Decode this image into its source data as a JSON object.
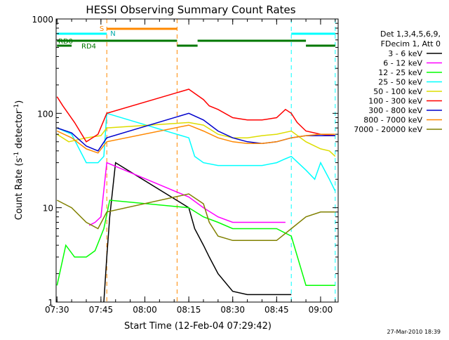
{
  "chart_data": {
    "type": "line",
    "title": "HESSI Observing Summary Count Rates",
    "xlabel": "Start Time (12-Feb-04 07:29:42)",
    "ylabel": "Count Rate (s",
    "ylabel_sup1": "-1",
    "ylabel_mid": " detector",
    "ylabel_sup2": "-1",
    "ylabel_end": ")",
    "y_scale": "log",
    "ylim": [
      1,
      1000
    ],
    "xlim": [
      "07:29:42",
      "09:06:00"
    ],
    "x_ticks": [
      "07:30",
      "07:45",
      "08:00",
      "08:15",
      "08:30",
      "08:45",
      "09:00"
    ],
    "y_ticks": [
      "1",
      "10",
      "100",
      "1000"
    ],
    "legend": {
      "header": [
        "Det 1,3,4,5,6,9,",
        "FDecim 1, Att 0"
      ],
      "placement": "right"
    },
    "series": [
      {
        "name": "3 - 6 keV",
        "color": "#000000",
        "x": [
          "07:46",
          "07:47",
          "07:48",
          "07:50",
          "08:15",
          "08:17",
          "08:20",
          "08:22",
          "08:25",
          "08:30",
          "08:35",
          "08:40",
          "08:45",
          "08:50"
        ],
        "y": [
          1,
          3,
          8,
          30,
          10,
          6,
          4,
          3,
          2,
          1.3,
          1.2,
          1.2,
          1.2,
          1.2
        ]
      },
      {
        "name": "6 - 12 keV",
        "color": "#ff00ff",
        "x": [
          "07:41",
          "07:43",
          "07:45",
          "07:47",
          "08:15",
          "08:20",
          "08:25",
          "08:30",
          "08:35",
          "08:40",
          "08:45",
          "08:48"
        ],
        "y": [
          6.5,
          7,
          8,
          30,
          13,
          10,
          8,
          7,
          7,
          7,
          7,
          7
        ]
      },
      {
        "name": "12 - 25 keV",
        "color": "#00ff00",
        "x": [
          "07:30",
          "07:33",
          "07:36",
          "07:40",
          "07:43",
          "07:46",
          "07:48",
          "08:15",
          "08:20",
          "08:25",
          "08:30",
          "08:35",
          "08:40",
          "08:45",
          "08:50",
          "08:55",
          "09:00",
          "09:05"
        ],
        "y": [
          1.5,
          4,
          3,
          3,
          3.5,
          6,
          12,
          10,
          8,
          7,
          6,
          6,
          6,
          6,
          5,
          1.5,
          1.5,
          1.5
        ]
      },
      {
        "name": "25 - 50 keV",
        "color": "#00ffff",
        "x": [
          "07:30",
          "07:35",
          "07:40",
          "07:44",
          "07:46",
          "07:47",
          "08:15",
          "08:17",
          "08:20",
          "08:25",
          "08:30",
          "08:35",
          "08:40",
          "08:45",
          "08:48",
          "08:50",
          "08:55",
          "08:58",
          "09:00",
          "09:03",
          "09:05"
        ],
        "y": [
          70,
          60,
          30,
          30,
          35,
          100,
          55,
          35,
          30,
          28,
          28,
          28,
          28,
          30,
          33,
          35,
          25,
          20,
          30,
          20,
          15
        ]
      },
      {
        "name": "50 - 100 keV",
        "color": "#dddd00",
        "x": [
          "07:30",
          "07:34",
          "07:40",
          "07:45",
          "07:47",
          "08:15",
          "08:20",
          "08:25",
          "08:30",
          "08:35",
          "08:40",
          "08:45",
          "08:50",
          "08:55",
          "09:00",
          "09:03",
          "09:05"
        ],
        "y": [
          60,
          50,
          55,
          58,
          70,
          80,
          75,
          60,
          55,
          55,
          58,
          60,
          65,
          50,
          42,
          40,
          35
        ]
      },
      {
        "name": "100 - 300 keV",
        "color": "#ff0000",
        "x": [
          "07:30",
          "07:32",
          "07:36",
          "07:40",
          "07:44",
          "07:47",
          "08:15",
          "08:20",
          "08:22",
          "08:25",
          "08:30",
          "08:35",
          "08:40",
          "08:45",
          "08:48",
          "08:50",
          "08:52",
          "08:55",
          "09:00",
          "09:05"
        ],
        "y": [
          150,
          120,
          80,
          50,
          60,
          100,
          180,
          140,
          120,
          110,
          90,
          85,
          85,
          90,
          110,
          100,
          80,
          65,
          60,
          58
        ]
      },
      {
        "name": "300 - 800 keV",
        "color": "#0000cc",
        "x": [
          "07:30",
          "07:35",
          "07:40",
          "07:44",
          "07:47",
          "08:15",
          "08:20",
          "08:25",
          "08:30",
          "08:35",
          "08:40",
          "08:45",
          "08:50",
          "08:55",
          "09:00",
          "09:05"
        ],
        "y": [
          70,
          62,
          45,
          40,
          55,
          100,
          85,
          65,
          55,
          50,
          48,
          50,
          55,
          58,
          58,
          58
        ]
      },
      {
        "name": "800 - 7000 keV",
        "color": "#ff8800",
        "x": [
          "07:30",
          "07:35",
          "07:40",
          "07:44",
          "07:47",
          "08:15",
          "08:20",
          "08:25",
          "08:30",
          "08:35",
          "08:40",
          "08:45",
          "08:50",
          "08:55",
          "09:00",
          "09:05"
        ],
        "y": [
          65,
          55,
          42,
          38,
          50,
          75,
          65,
          55,
          50,
          48,
          48,
          50,
          55,
          58,
          60,
          60
        ]
      },
      {
        "name": "7000 - 20000 keV",
        "color": "#808000",
        "x": [
          "07:30",
          "07:35",
          "07:40",
          "07:44",
          "07:47",
          "08:15",
          "08:20",
          "08:22",
          "08:25",
          "08:30",
          "08:35",
          "08:40",
          "08:45",
          "08:50",
          "08:55",
          "09:00",
          "09:05"
        ],
        "y": [
          12,
          10,
          7,
          6,
          9,
          14,
          11,
          7,
          5,
          4.5,
          4.5,
          4.5,
          4.5,
          6,
          8,
          9,
          9
        ]
      }
    ],
    "annotations": {
      "flags": [
        "S",
        "N",
        "RD0",
        "RD4"
      ],
      "timestamp": "27-Mar-2010 18:39"
    }
  }
}
